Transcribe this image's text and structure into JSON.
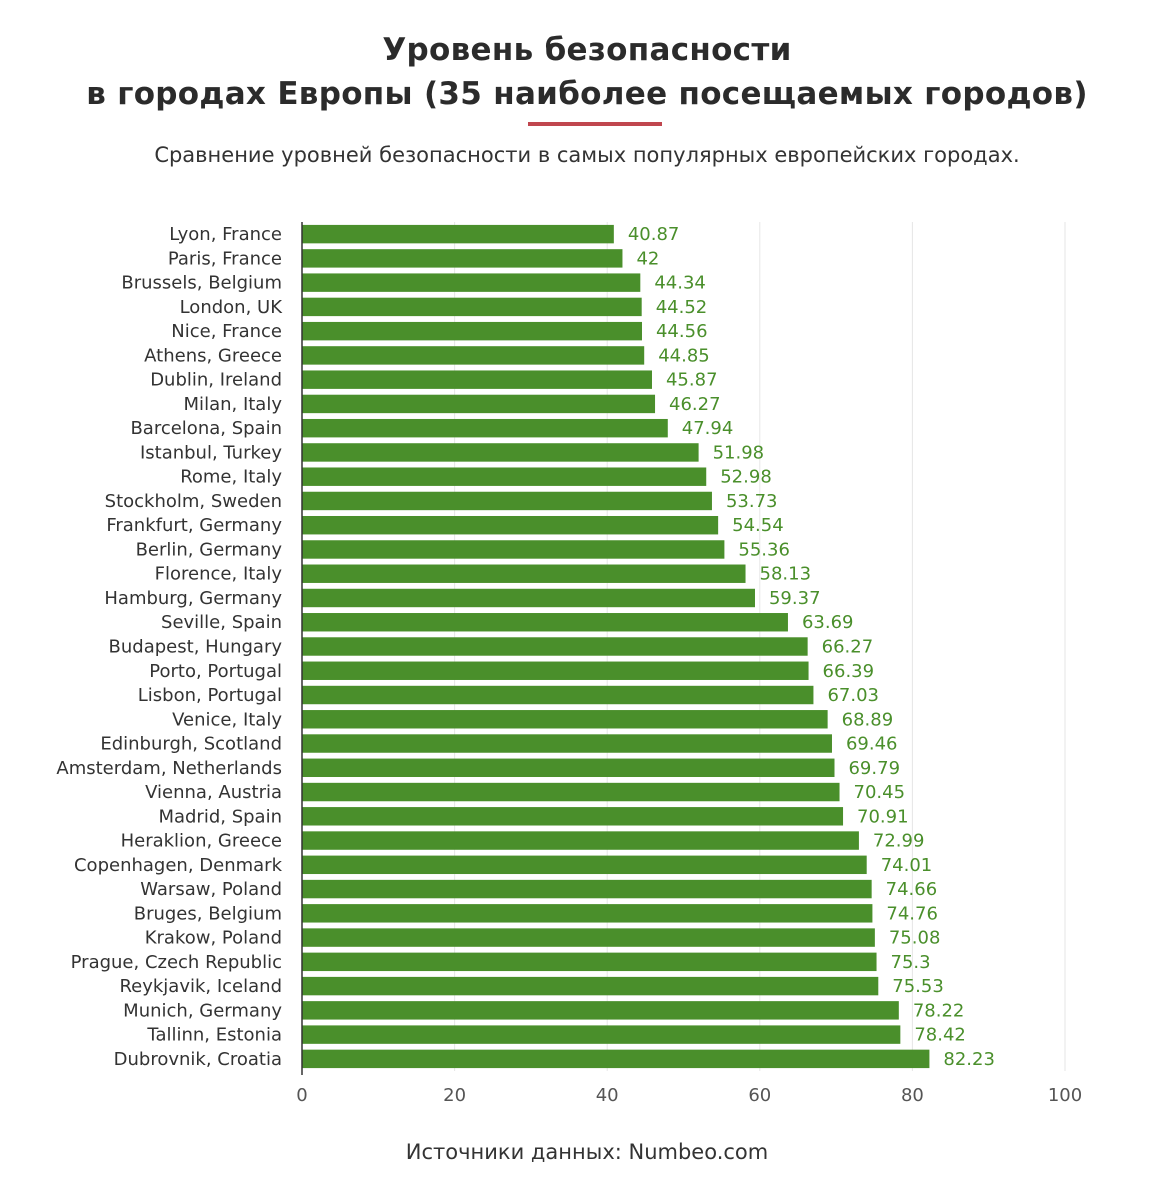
{
  "header": {
    "title_lines": [
      "Уровень безопасности",
      "в городах Европы (35 наиболее посещаемых городов)"
    ],
    "subtitle": "Сравнение уровней безопасности в самых популярных европейских городах.",
    "accent_color": "#c0464e"
  },
  "footer": {
    "source": "Источники данных: Numbeo.com"
  },
  "chart_data": {
    "type": "bar",
    "orientation": "horizontal",
    "title": "Уровень безопасности в городах Европы (35 наиболее посещаемых городов)",
    "xlabel": "",
    "ylabel": "",
    "xlim": [
      0,
      100
    ],
    "xticks": [
      0,
      20,
      40,
      60,
      80,
      100
    ],
    "grid": true,
    "bar_color": "#4a8f2b",
    "label_color": "#4a8f2b",
    "categories": [
      "Lyon, France",
      "Paris, France",
      "Brussels, Belgium",
      "London, UK",
      "Nice, France",
      "Athens, Greece",
      "Dublin, Ireland",
      "Milan, Italy",
      "Barcelona, Spain",
      "Istanbul, Turkey",
      "Rome, Italy",
      "Stockholm, Sweden",
      "Frankfurt, Germany",
      "Berlin, Germany",
      "Florence, Italy",
      "Hamburg, Germany",
      "Seville, Spain",
      "Budapest, Hungary",
      "Porto, Portugal",
      "Lisbon, Portugal",
      "Venice, Italy",
      "Edinburgh, Scotland",
      "Amsterdam, Netherlands",
      "Vienna, Austria",
      "Madrid, Spain",
      "Heraklion, Greece",
      "Copenhagen, Denmark",
      "Warsaw, Poland",
      "Bruges, Belgium",
      "Krakow, Poland",
      "Prague, Czech Republic",
      "Reykjavik, Iceland",
      "Munich, Germany",
      "Tallinn, Estonia",
      "Dubrovnik, Croatia"
    ],
    "values": [
      40.87,
      42,
      44.34,
      44.52,
      44.56,
      44.85,
      45.87,
      46.27,
      47.94,
      51.98,
      52.98,
      53.73,
      54.54,
      55.36,
      58.13,
      59.37,
      63.69,
      66.27,
      66.39,
      67.03,
      68.89,
      69.46,
      69.79,
      70.45,
      70.91,
      72.99,
      74.01,
      74.66,
      74.76,
      75.08,
      75.3,
      75.53,
      78.22,
      78.42,
      82.23
    ]
  }
}
